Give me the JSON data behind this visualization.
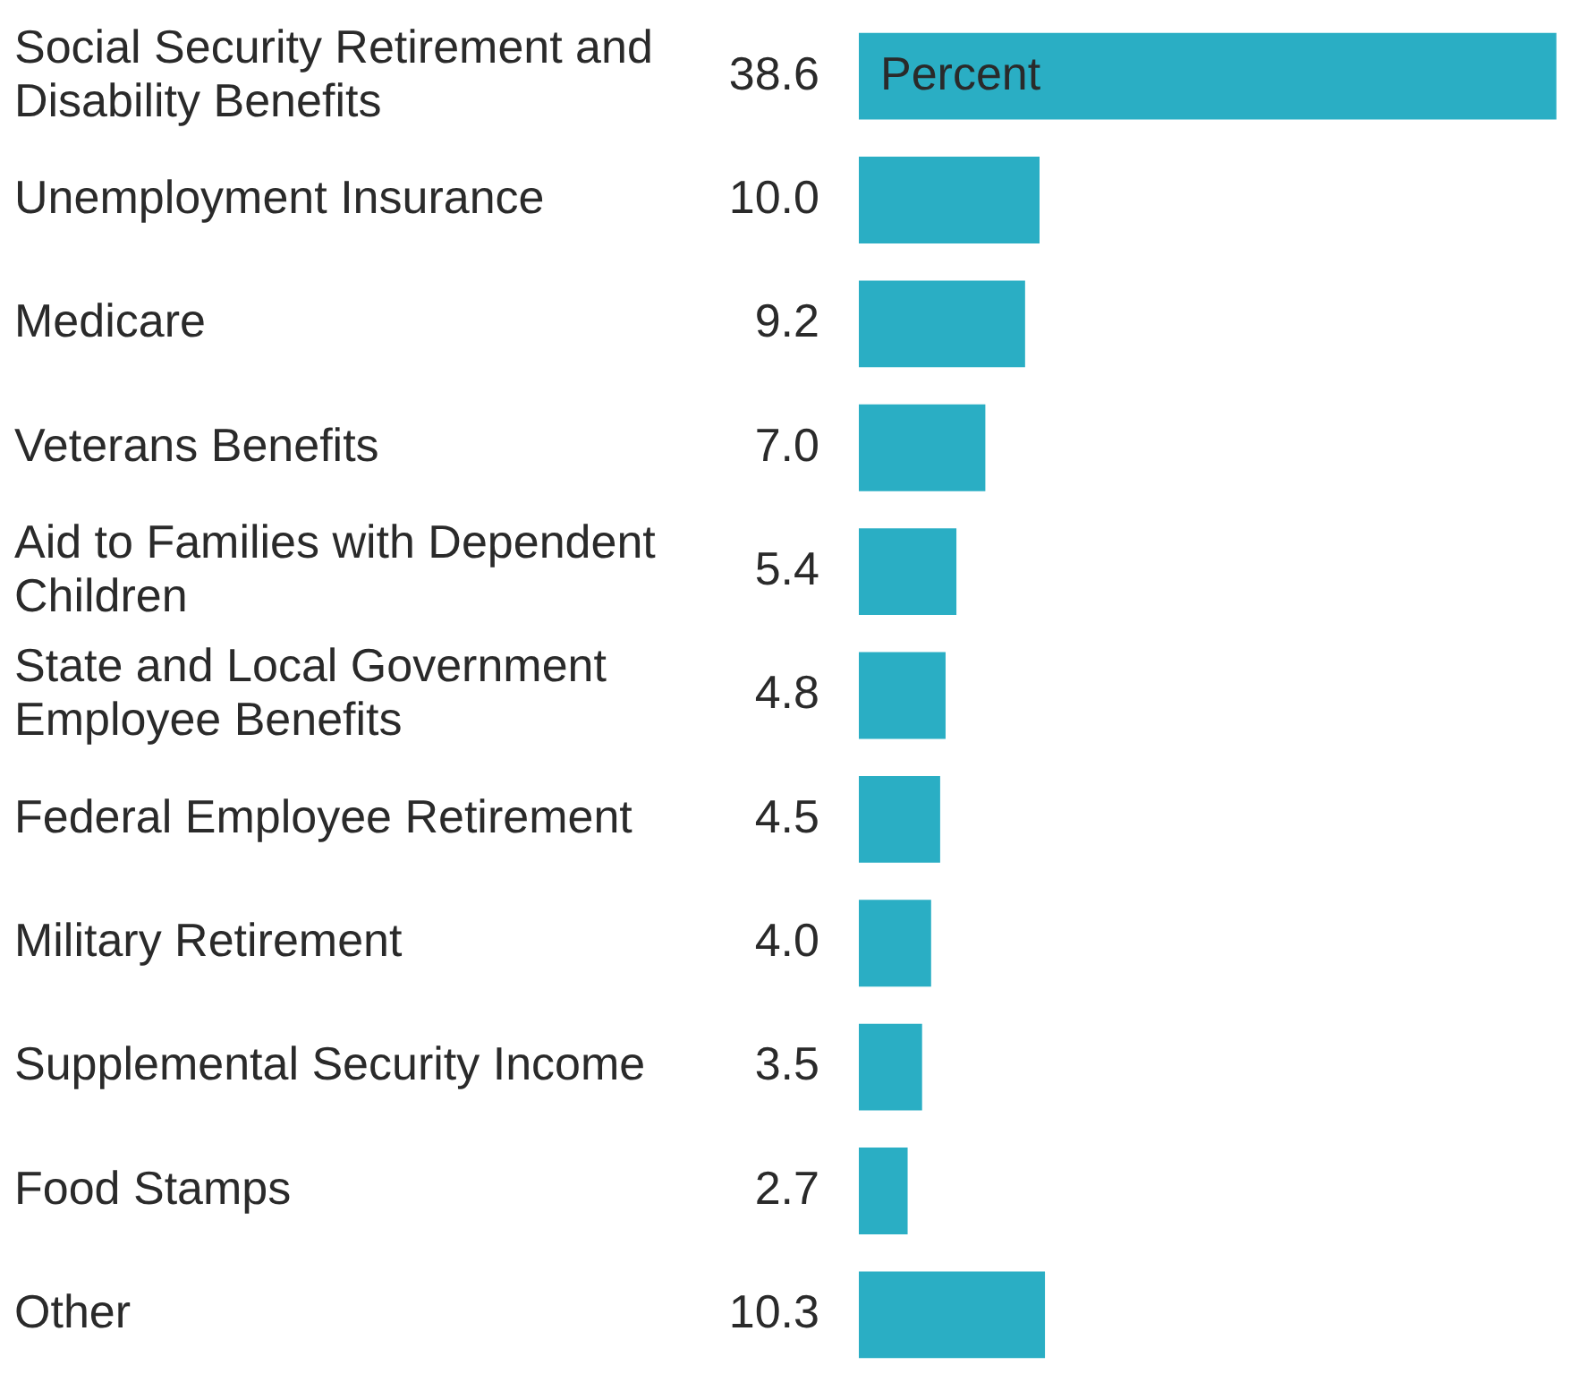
{
  "chart_data": {
    "type": "bar",
    "orientation": "horizontal",
    "categories": [
      "Social Security Retirement and Disability Benefits",
      "Unemployment Insurance",
      "Medicare",
      "Veterans Benefits",
      "Aid to Families with Dependent Children",
      "State and Local Government Employee Benefits",
      "Federal Employee Retirement",
      "Military Retirement",
      "Supplemental Security Income",
      "Food Stamps",
      "Other"
    ],
    "values": [
      38.6,
      10.0,
      9.2,
      7.0,
      5.4,
      4.8,
      4.5,
      4.0,
      3.5,
      2.7,
      10.3
    ],
    "color": "#2aaec4",
    "data_labels": true,
    "value_labels": [
      "38.6",
      "10.0",
      "9.2",
      "7.0",
      "5.4",
      "4.8",
      "4.5",
      "4.0",
      "3.5",
      "2.7",
      "10.3"
    ],
    "annotations": [
      "Percent"
    ],
    "legend": false
  }
}
